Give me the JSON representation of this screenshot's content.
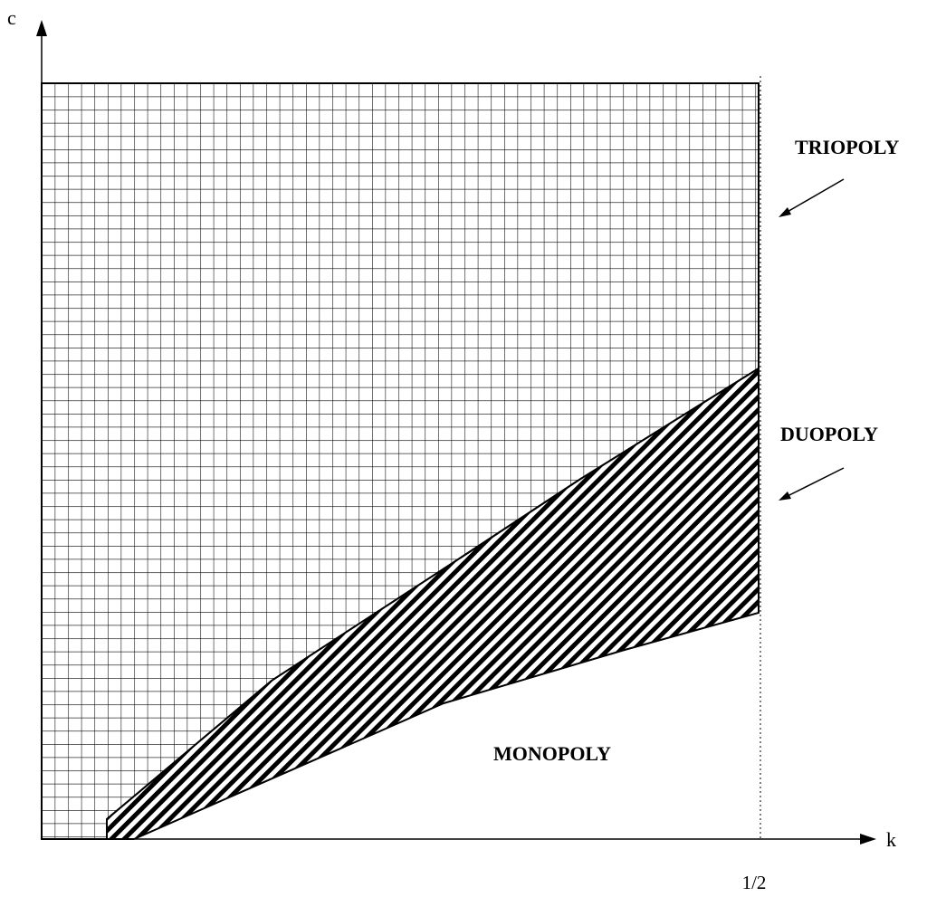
{
  "diagram": {
    "axes": {
      "y_label": "c",
      "x_label": "k",
      "x_tick_label": "1/2"
    },
    "regions": [
      {
        "name": "TRIOPOLY",
        "pattern": "square-grid"
      },
      {
        "name": "DUOPOLY",
        "pattern": "diagonal-hatch"
      },
      {
        "name": "MONOPOLY",
        "pattern": "none"
      }
    ],
    "colors": {
      "line": "#000000",
      "background": "#ffffff"
    }
  }
}
